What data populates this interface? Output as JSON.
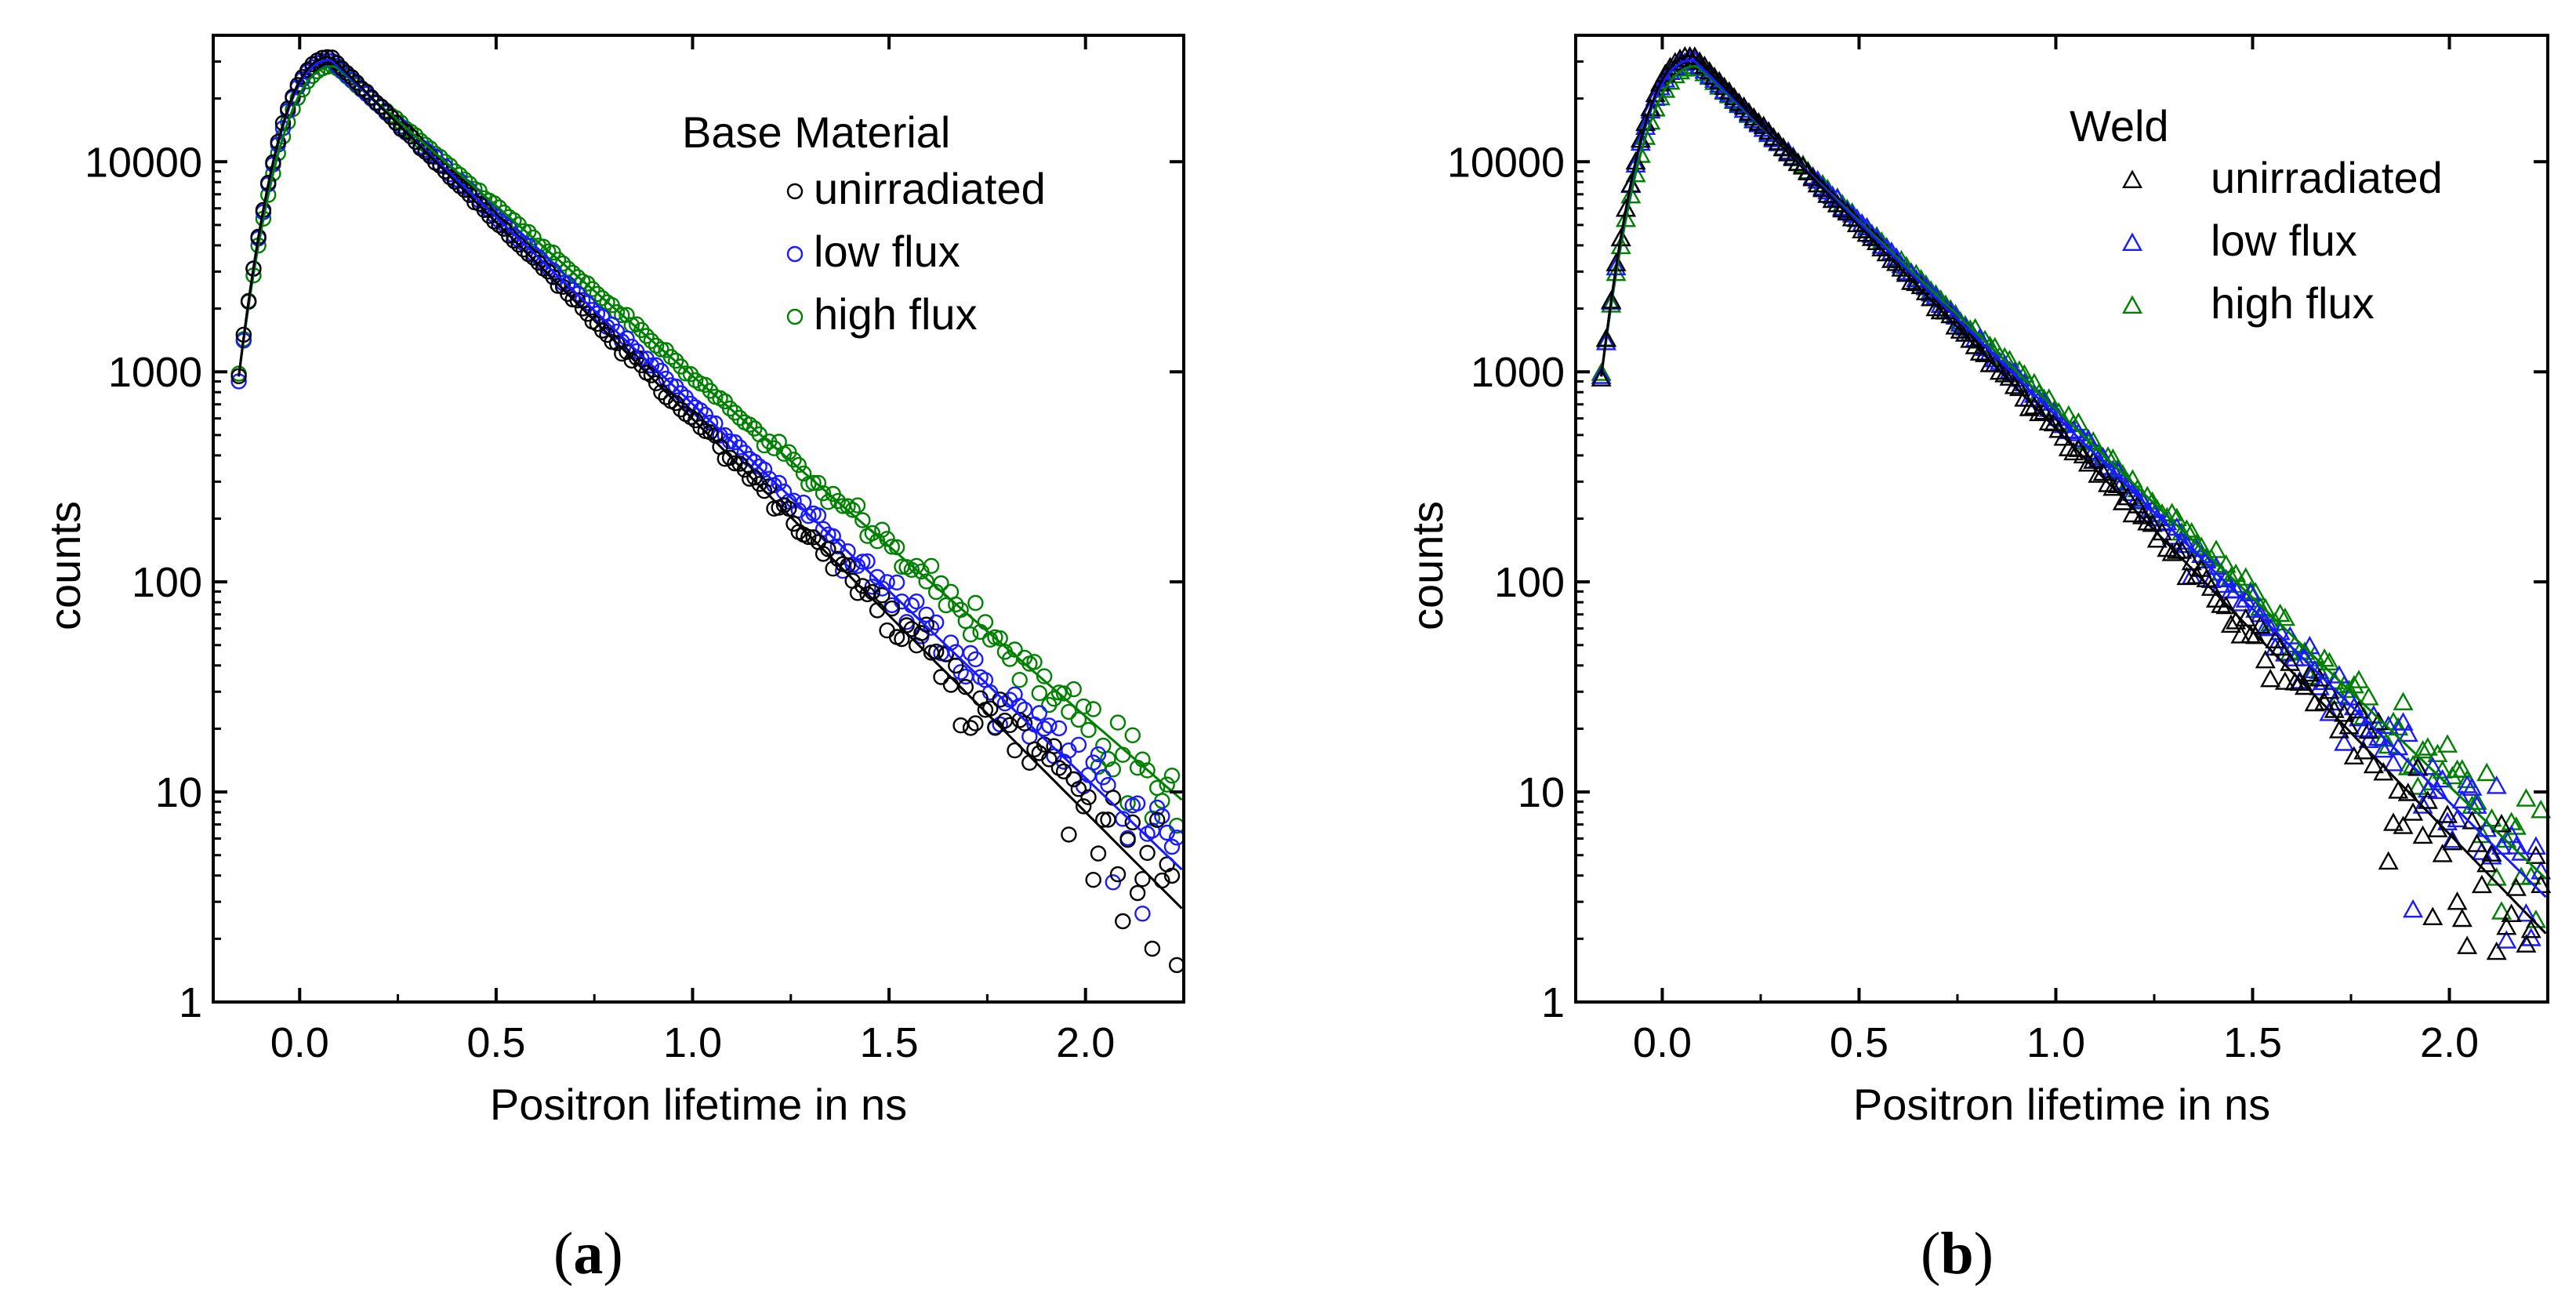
{
  "chart_data": [
    {
      "type": "scatter",
      "panel": "a",
      "caption_letter": "a",
      "legend_title": "Base Material",
      "xlabel": "Positron lifetime in ns",
      "ylabel": "counts",
      "y_scale": "log",
      "xlim": [
        -0.22,
        2.25
      ],
      "ylim": [
        1,
        40000
      ],
      "x_ticks": [
        0.0,
        0.5,
        1.0,
        1.5,
        2.0
      ],
      "x_tick_labels": [
        "0.0",
        "0.5",
        "1.0",
        "1.5",
        "2.0"
      ],
      "y_ticks": [
        1,
        10,
        100,
        1000,
        10000
      ],
      "y_tick_labels": [
        "1",
        "10",
        "100",
        "1000",
        "10000"
      ],
      "marker": "circle",
      "legend_position": "top-right",
      "series": [
        {
          "name": "unirradiated",
          "color": "#000000",
          "peak_x": 0.08,
          "peak": 31500,
          "tau": 0.232
        },
        {
          "name": "low flux",
          "color": "#1a1aff",
          "peak_x": 0.08,
          "peak": 30500,
          "tau": 0.244
        },
        {
          "name": "high flux",
          "color": "#008000",
          "peak_x": 0.09,
          "peak": 28500,
          "tau": 0.268
        }
      ]
    },
    {
      "type": "scatter",
      "panel": "b",
      "caption_letter": "b",
      "legend_title": "Weld",
      "xlabel": "Positron lifetime in ns",
      "ylabel": "counts",
      "y_scale": "log",
      "xlim": [
        -0.22,
        2.25
      ],
      "ylim": [
        1,
        40000
      ],
      "x_ticks": [
        0.0,
        0.5,
        1.0,
        1.5,
        2.0
      ],
      "x_tick_labels": [
        "0.0",
        "0.5",
        "1.0",
        "1.5",
        "2.0"
      ],
      "y_ticks": [
        1,
        10,
        100,
        1000,
        10000
      ],
      "y_tick_labels": [
        "1",
        "10",
        "100",
        "1000",
        "10000"
      ],
      "marker": "triangle",
      "legend_position": "top-right",
      "series": [
        {
          "name": "unirradiated",
          "color": "#000000",
          "peak_x": 0.08,
          "peak": 32000,
          "tau": 0.225
        },
        {
          "name": "low flux",
          "color": "#1a1aff",
          "peak_x": 0.08,
          "peak": 30500,
          "tau": 0.236
        },
        {
          "name": "high flux",
          "color": "#008000",
          "peak_x": 0.09,
          "peak": 28500,
          "tau": 0.242
        }
      ]
    }
  ]
}
